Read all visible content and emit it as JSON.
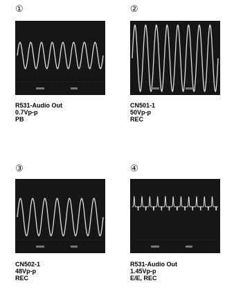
{
  "panels": [
    {
      "number": "①",
      "caption": [
        "R531-Audio Out",
        "0.7Vp-p",
        "PB"
      ]
    },
    {
      "number": "②",
      "caption": [
        "CN501-1",
        "50Vp-p",
        "REC"
      ]
    },
    {
      "number": "③",
      "caption": [
        "CN502-1",
        "48Vp-p",
        "REC"
      ]
    },
    {
      "number": "④",
      "caption": [
        "R531-Audio Out",
        "1.45Vp-p",
        "E/E, REC"
      ]
    }
  ]
}
